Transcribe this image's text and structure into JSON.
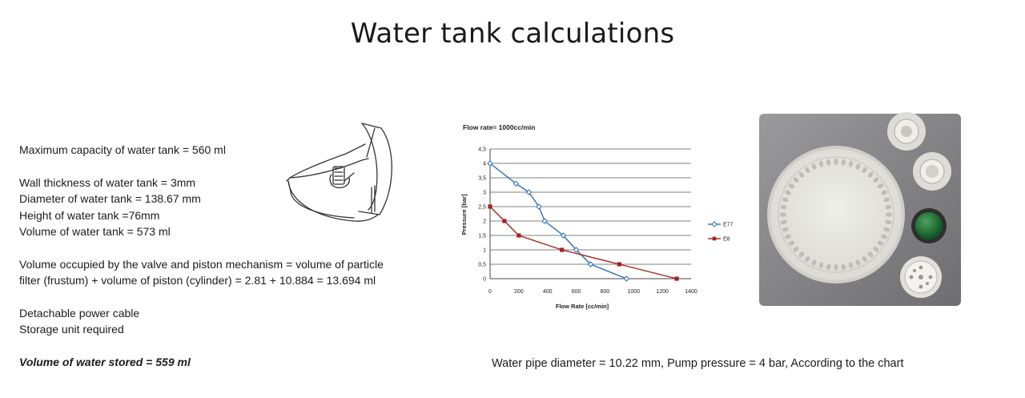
{
  "page": {
    "title": "Water tank calculations"
  },
  "specs": {
    "max_capacity": "Maximum capacity of water tank = 560 ml",
    "wall_thickness": "Wall thickness of water tank = 3mm",
    "diameter": "Diameter of water tank = 138.67 mm",
    "height": "Height of water tank =76mm",
    "volume": "Volume of water tank = 573 ml",
    "valve_volume_line1": "Volume occupied by the valve and piston mechanism = volume of particle",
    "valve_volume_line2": "filter (frustum) + volume of piston (cylinder) = 2.81 + 10.884 = 13.694 ml",
    "power_cable": "Detachable power cable",
    "storage_unit": "Storage unit required",
    "water_stored": "Volume of water stored = 559 ml"
  },
  "chart_data": {
    "type": "line",
    "title": "Flow rate= 1000cc/min",
    "xlabel": "Flow Rate [cc/min]",
    "ylabel": "Pressure [bar]",
    "xlim": [
      0,
      1400
    ],
    "ylim": [
      0,
      4.5
    ],
    "x_ticks": [
      "0",
      "200",
      "400",
      "600",
      "800",
      "1000",
      "1200",
      "1400"
    ],
    "y_ticks": [
      "0",
      "0,5",
      "1",
      "1,5",
      "2",
      "2,5",
      "3",
      "3,5",
      "4",
      "4,5"
    ],
    "grid": "horizontal",
    "legend_position": "right",
    "series": [
      {
        "name": "E77",
        "color": "#2a6db5",
        "marker": "diamond",
        "points": [
          [
            0,
            4
          ],
          [
            180,
            3.3
          ],
          [
            270,
            3
          ],
          [
            340,
            2.5
          ],
          [
            380,
            2
          ],
          [
            510,
            1.5
          ],
          [
            600,
            1
          ],
          [
            700,
            0.5
          ],
          [
            950,
            0
          ]
        ]
      },
      {
        "name": "E8",
        "color": "#a3231f",
        "marker": "square",
        "points": [
          [
            0,
            2.5
          ],
          [
            100,
            2
          ],
          [
            200,
            1.5
          ],
          [
            500,
            1
          ],
          [
            900,
            0.5
          ],
          [
            1300,
            0
          ]
        ]
      }
    ]
  },
  "caption": {
    "text": "Water pipe diameter = 10.22 mm, Pump pressure = 4 bar, According to the chart"
  }
}
